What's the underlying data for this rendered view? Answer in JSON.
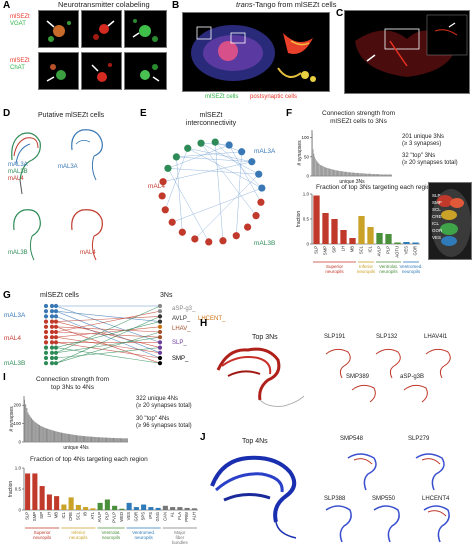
{
  "panelA": {
    "letter": "A",
    "title": "Neurotransmitter colabeling",
    "row1": {
      "label1": "mlSEZt",
      "label2": "VGAT",
      "color1": "#e8392c",
      "color2": "#2fb44a"
    },
    "row2": {
      "label1": "mlSEZt",
      "label2": "ChAT",
      "color1": "#e8392c",
      "color2": "#2fb44a"
    }
  },
  "panelB": {
    "letter": "B",
    "title_italic": "trans",
    "title_rest": "-Tango from mlSEZt cells",
    "legend_green": "mlSEZt cells",
    "legend_red": "postsynaptic cells"
  },
  "panelC": {
    "letter": "C"
  },
  "panelD": {
    "letter": "D",
    "title": "Putative mlSEZt cells",
    "neurons": [
      {
        "label": "mAL3A",
        "color": "#3a78b5"
      },
      {
        "label": "mAL3B",
        "color": "#2e8b57"
      },
      {
        "label": "mAL4",
        "color": "#c0392b"
      }
    ],
    "stack": [
      "mAL3A",
      "mAL3B",
      "mAL4"
    ]
  },
  "panelE": {
    "letter": "E",
    "title_line1": "mlSEZt",
    "title_line2": "interconnectivity",
    "label_a3a": "mAL3A",
    "label_a4": "mAL4",
    "label_a3b": "mAL3B"
  },
  "panelF": {
    "letter": "F",
    "top_title_line1": "Connection strength from",
    "top_title_line2": "mlSEZt cells to 3Ns",
    "ylabel_top": "# synapses",
    "xlabel_top": "unique 3Ns",
    "ticks_top": [
      "100",
      "50",
      "0"
    ],
    "note1_line1": "201 unique 3Ns",
    "note1_line2": "(≥ 3 synapses)",
    "note2_line1": "32 \"top\" 3Ns",
    "note2_line2": "(≥ 20 synapses total)",
    "bottom_title": "Fraction of top 3Ns targeting each region",
    "ylabel_bottom": "fraction",
    "ticks_bottom": [
      "1.0",
      "0.5",
      "0"
    ],
    "group_superior": "Superior neuropils",
    "group_inferior": "Inferior neuropils",
    "group_ventral": "Ventrolat. neuropils",
    "group_ventromed": "Ventromed. neuropils",
    "brain_labels": [
      "SLP",
      "SMP",
      "SCL",
      "CRE",
      "ICL",
      "GOR",
      "VES"
    ]
  },
  "panelG": {
    "letter": "G",
    "left_title": "mlSEZt cells",
    "right_title": "3Ns",
    "left_labels": [
      "mAL3A",
      "mAL4",
      "mAL3B"
    ],
    "right_labels": [
      "aSP-g3_",
      "AVLP_",
      "LHCENT_",
      "LHAV_",
      "SLP_",
      "SMP_"
    ]
  },
  "panelH": {
    "letter": "H",
    "main_label": "Top 3Ns",
    "examples": [
      "SLP191",
      "SLP132",
      "LHAV4l1",
      "SMP389",
      "aSP-g3B"
    ]
  },
  "panelI": {
    "letter": "I",
    "top_title_line1": "Connection strength from",
    "top_title_line2": "top 3Ns to 4Ns",
    "ylabel_top": "# synapses",
    "xlabel_top": "unique 4Ns",
    "ticks_top": [
      "200",
      "100",
      "0"
    ],
    "note1_line1": "322 unique 4Ns",
    "note1_line2": "(≥ 20 synapses total)",
    "note2_line1": "30 \"top\" 4Ns",
    "note2_line2": "(≥ 96 synapses total)",
    "bottom_title": "Fraction of top 4Ns targeting each region",
    "ylabel_bottom": "fraction",
    "ticks_bottom": [
      "1.0",
      "0.5",
      "0"
    ],
    "group_superior": "Superior neuropils",
    "group_inferior": "Inferior neuropils",
    "group_ventral": "Ventrolat. neuropils",
    "group_ventromed": "Ventromed. neuropils",
    "group_fiber": "Major fiber bundles"
  },
  "panelJ": {
    "letter": "J",
    "main_label": "Top 4Ns",
    "examples": [
      "SMP548",
      "SLP279",
      "SLP388",
      "SMP550",
      "LHCENT4"
    ]
  },
  "chart_data": [
    {
      "id": "F-top",
      "type": "bar",
      "title": "Connection strength from mlSEZt cells to 3Ns",
      "xlabel": "unique 3Ns",
      "ylabel": "# synapses",
      "ylim": [
        0,
        120
      ],
      "values": [
        112,
        70,
        58,
        50,
        45,
        41,
        38,
        35,
        33,
        31,
        29,
        28,
        27,
        26,
        25,
        24,
        23,
        22,
        21,
        21,
        20,
        20,
        19,
        18,
        18,
        17,
        17,
        16,
        16,
        15,
        15,
        14,
        14,
        14,
        13,
        13,
        13,
        12,
        12,
        12,
        11,
        11,
        11,
        11,
        10,
        10,
        10,
        10,
        9,
        9,
        9,
        9,
        9,
        8,
        8,
        8,
        8,
        8,
        8,
        7,
        7,
        7,
        7,
        7,
        7,
        7,
        6,
        6,
        6,
        6,
        6,
        6,
        6,
        6,
        5,
        5,
        5,
        5,
        5,
        5,
        5,
        5,
        5,
        5,
        4,
        4,
        4,
        4,
        4,
        4,
        4,
        4,
        4,
        4,
        4,
        4,
        4,
        4,
        4,
        4
      ]
    },
    {
      "id": "F-bottom",
      "type": "bar",
      "title": "Fraction of top 3Ns targeting each region",
      "ylabel": "fraction",
      "ylim": [
        0,
        1.0
      ],
      "categories": [
        "SLP",
        "SMP",
        "SIP",
        "LH",
        "MB",
        "SCL",
        "ICL",
        "AVLP",
        "PLP",
        "AOTU",
        "VES",
        "GOR"
      ],
      "values": [
        0.97,
        0.62,
        0.5,
        0.28,
        0.12,
        0.56,
        0.34,
        0.22,
        0.2,
        0.03,
        0.04,
        0.03
      ],
      "colors": [
        "#c0392b",
        "#c0392b",
        "#c0392b",
        "#c0392b",
        "#c0392b",
        "#c9a227",
        "#c9a227",
        "#4a8f3a",
        "#4a8f3a",
        "#4a8f3a",
        "#2f7ab8",
        "#2f7ab8"
      ]
    },
    {
      "id": "I-top",
      "type": "bar",
      "title": "Connection strength from top 3Ns to 4Ns",
      "xlabel": "unique 4Ns",
      "ylabel": "# synapses",
      "ylim": [
        0,
        250
      ],
      "values": [
        230,
        205,
        185,
        160,
        148,
        138,
        130,
        122,
        116,
        110,
        105,
        100,
        96,
        92,
        88,
        85,
        82,
        79,
        76,
        74,
        72,
        70,
        68,
        66,
        64,
        62,
        60,
        58,
        57,
        55,
        54,
        52,
        51,
        50,
        48,
        47,
        46,
        45,
        44,
        43,
        42,
        41,
        40,
        39,
        38,
        37,
        36,
        35,
        35,
        34,
        33,
        33,
        32,
        31,
        31,
        30,
        30,
        29,
        29,
        28,
        28,
        27,
        27,
        26,
        26,
        26,
        25,
        25,
        25,
        24,
        24,
        24,
        23,
        23,
        23,
        22,
        22,
        22,
        22,
        21,
        21,
        21,
        21,
        21,
        20,
        20,
        20,
        20,
        20,
        20
      ]
    },
    {
      "id": "I-bottom",
      "type": "bar",
      "title": "Fraction of top 4Ns targeting each region",
      "ylabel": "fraction",
      "ylim": [
        0,
        1.0
      ],
      "categories": [
        "SLP",
        "SMP",
        "SIP",
        "LH",
        "MB",
        "ICL",
        "CRE",
        "SCL",
        "IB",
        "ATL",
        "AVLP",
        "PLP",
        "PVLP",
        "WED",
        "VES",
        "GOR",
        "SPS",
        "IPS",
        "GNG",
        "CAN",
        "AL",
        "FLA",
        "PRW",
        "ALH"
      ],
      "values": [
        0.87,
        0.87,
        0.57,
        0.37,
        0.33,
        0.13,
        0.3,
        0.12,
        0.07,
        0.04,
        0.17,
        0.25,
        0.1,
        0.03,
        0.17,
        0.07,
        0.13,
        0.07,
        0.05,
        0.1,
        0.07,
        0.07,
        0.05,
        0.04
      ],
      "colors": [
        "#c0392b",
        "#c0392b",
        "#c0392b",
        "#c0392b",
        "#c0392b",
        "#c9a227",
        "#c9a227",
        "#c9a227",
        "#c9a227",
        "#c9a227",
        "#4a8f3a",
        "#4a8f3a",
        "#4a8f3a",
        "#4a8f3a",
        "#2f7ab8",
        "#2f7ab8",
        "#2f7ab8",
        "#2f7ab8",
        "#2f7ab8",
        "#777777",
        "#777777",
        "#777777",
        "#777777",
        "#777777"
      ]
    }
  ]
}
